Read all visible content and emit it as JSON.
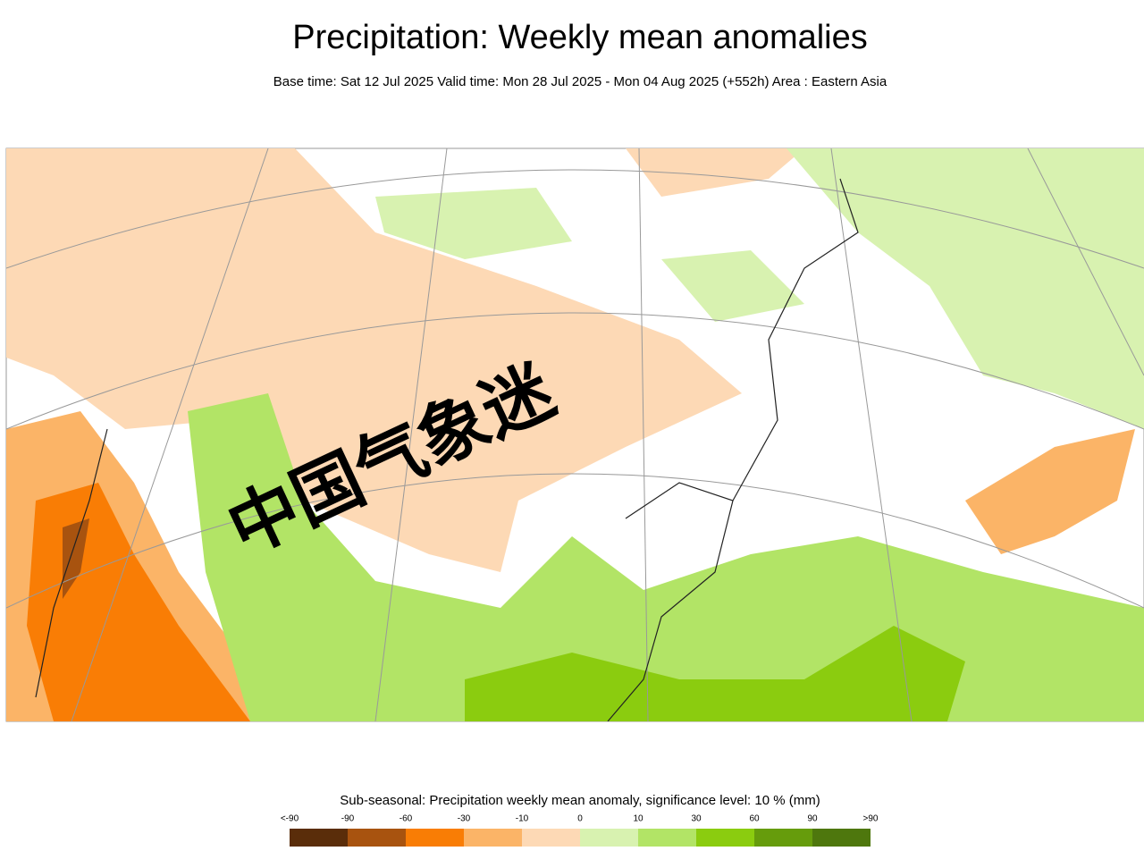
{
  "header": {
    "title": "Precipitation: Weekly mean anomalies",
    "subtitle": "Base time: Sat 12 Jul 2025 Valid time: Mon 28 Jul 2025 - Mon 04 Aug 2025 (+552h) Area : Eastern Asia"
  },
  "watermark": "中国气象迷",
  "legend": {
    "title": "Sub-seasonal: Precipitation weekly mean anomaly, significance level: 10 % (mm)",
    "labels": [
      "<-90",
      "-90",
      "-60",
      "-30",
      "-10",
      "0",
      "10",
      "30",
      "60",
      "90",
      ">90"
    ],
    "colors": [
      "#5a2d0a",
      "#a8530f",
      "#f97d05",
      "#fbb467",
      "#fdd9b5",
      "#d8f2b0",
      "#b2e466",
      "#8bcc0f",
      "#669c0c",
      "#4e770d"
    ]
  }
}
